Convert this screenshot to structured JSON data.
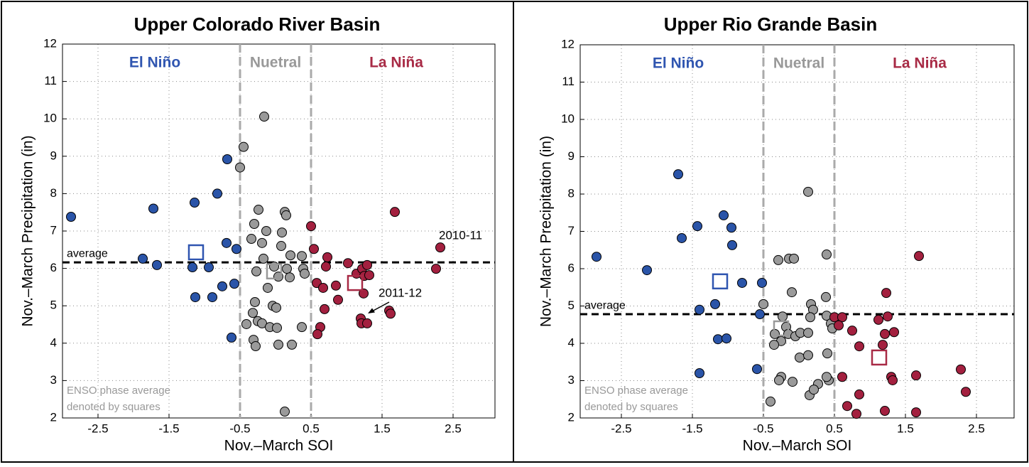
{
  "chart_data": [
    {
      "type": "scatter",
      "title": "Upper Colorado River Basin",
      "x_label": "Nov.–March SOI",
      "y_label": "Nov.–March Precipitation (in)",
      "xlim": [
        -3,
        3.09
      ],
      "ylim": [
        2,
        12
      ],
      "xticks": [
        -2.5,
        -1.5,
        -0.5,
        0.5,
        1.5,
        2.5
      ],
      "yticks": [
        2,
        3,
        4,
        5,
        6,
        7,
        8,
        9,
        10,
        11,
        12
      ],
      "grid": true,
      "phase_bounds": [
        -0.5,
        0.5
      ],
      "average": {
        "label": "average",
        "value": 6.16
      },
      "note": [
        "ENSO phase average",
        "denoted by squares"
      ],
      "annotations": [
        "2010-11",
        "2011-12"
      ],
      "series": [
        {
          "name": "El Niño",
          "color": "#2a54a8",
          "label_color": "#2f55b0",
          "x": [
            -2.88,
            -1.72,
            -1.87,
            -1.67,
            -1.14,
            -1.17,
            -1.13,
            -0.94,
            -0.89,
            -0.75,
            -0.82,
            -0.68,
            -0.69,
            -0.55,
            -0.58,
            -0.62
          ],
          "values": [
            7.38,
            7.6,
            6.26,
            6.09,
            7.76,
            6.03,
            5.23,
            6.03,
            5.23,
            5.52,
            8.0,
            8.92,
            6.68,
            6.52,
            5.59,
            4.15
          ],
          "average": {
            "x": -1.12,
            "value": 6.43
          }
        },
        {
          "name": "Nuetral",
          "color": "#9a9a9a",
          "label_color": "#999999",
          "x": [
            -0.5,
            -0.45,
            -0.16,
            -0.24,
            -0.3,
            -0.34,
            -0.13,
            -0.19,
            -0.17,
            -0.27,
            -0.11,
            -0.02,
            -0.29,
            -0.32,
            -0.25,
            -0.19,
            -0.41,
            -0.08,
            -0.04,
            0.01,
            0.02,
            -0.31,
            -0.28,
            0.04,
            0.23,
            0.13,
            0.13,
            0.15,
            0.09,
            0.08,
            0.21,
            0.16,
            0.2,
            0.37,
            0.39,
            0.41,
            0.37,
            0.04
          ],
          "values": [
            8.7,
            9.25,
            10.06,
            7.57,
            7.19,
            6.79,
            7.0,
            6.68,
            6.26,
            5.92,
            5.48,
            6.05,
            5.1,
            4.81,
            4.59,
            4.53,
            4.51,
            4.43,
            5.0,
            4.95,
            4.41,
            4.09,
            3.92,
            3.96,
            3.96,
            2.17,
            7.51,
            7.42,
            6.96,
            6.6,
            6.35,
            5.99,
            5.76,
            6.33,
            5.99,
            5.86,
            4.43,
            5.78
          ],
          "average": {
            "x": -0.02,
            "value": 5.92
          }
        },
        {
          "name": "La Niña",
          "color": "#a3203f",
          "label_color": "#a82a45",
          "x": [
            0.5,
            0.54,
            0.73,
            0.71,
            0.58,
            0.67,
            0.85,
            0.88,
            0.69,
            0.63,
            0.59,
            1.02,
            1.14,
            1.22,
            1.25,
            1.29,
            1.32,
            1.24,
            1.2,
            1.21,
            1.29,
            1.6,
            1.62,
            1.68,
            2.32,
            2.26
          ],
          "values": [
            7.13,
            6.52,
            6.3,
            6.05,
            5.61,
            5.48,
            5.54,
            5.16,
            4.91,
            4.43,
            4.24,
            6.14,
            5.86,
            5.99,
            5.8,
            6.09,
            5.82,
            5.33,
            4.66,
            4.53,
            4.53,
            4.87,
            4.79,
            7.51,
            6.56,
            5.99
          ],
          "average": {
            "x": 1.12,
            "value": 5.61
          }
        }
      ]
    },
    {
      "type": "scatter",
      "title": "Upper Rio Grande Basin",
      "x_label": "Nov.–March SOI",
      "y_label": "Nov.–March Precipitation (in)",
      "xlim": [
        -3.08,
        3.03
      ],
      "ylim": [
        2,
        12
      ],
      "xticks": [
        -2.5,
        -1.5,
        -0.5,
        0.5,
        1.5,
        2.5
      ],
      "yticks": [
        2,
        3,
        4,
        5,
        6,
        7,
        8,
        9,
        10,
        11,
        12
      ],
      "grid": true,
      "phase_bounds": [
        -0.5,
        0.5
      ],
      "average": {
        "label": "average",
        "value": 4.78
      },
      "note": [
        "ENSO phase average",
        "denoted by squares"
      ],
      "series": [
        {
          "name": "El Niño",
          "color": "#2a54a8",
          "label_color": "#2f55b0",
          "x": [
            -2.85,
            -2.14,
            -1.7,
            -1.65,
            -1.43,
            -1.06,
            -0.95,
            -0.94,
            -0.8,
            -0.52,
            -0.59,
            -1.4,
            -1.18,
            -1.14,
            -1.02,
            -1.4,
            -0.55
          ],
          "values": [
            6.32,
            5.96,
            8.53,
            6.82,
            7.14,
            7.43,
            7.1,
            6.63,
            5.62,
            5.62,
            3.31,
            4.9,
            5.05,
            4.11,
            4.13,
            3.2,
            4.78
          ],
          "average": {
            "x": -1.11,
            "value": 5.66
          }
        },
        {
          "name": "Nuetral",
          "color": "#9a9a9a",
          "label_color": "#999999",
          "x": [
            0.13,
            0.39,
            -0.29,
            -0.14,
            -0.07,
            -0.1,
            -0.5,
            0.17,
            0.2,
            0.16,
            0.38,
            0.39,
            0.45,
            0.47,
            -0.34,
            -0.23,
            -0.18,
            -0.15,
            -0.05,
            0.02,
            0.13,
            -0.25,
            -0.35,
            0.01,
            0.13,
            -0.25,
            -0.28,
            -0.09,
            0.27,
            0.42,
            0.39,
            0.15,
            0.21,
            -0.4,
            0.4
          ],
          "values": [
            8.06,
            6.38,
            6.23,
            6.27,
            6.27,
            5.37,
            5.05,
            5.05,
            4.9,
            4.7,
            5.24,
            4.74,
            4.53,
            4.4,
            4.25,
            4.72,
            4.44,
            4.25,
            4.19,
            4.28,
            4.28,
            4.06,
            3.96,
            3.62,
            3.68,
            3.1,
            3.01,
            2.97,
            2.91,
            3.01,
            3.1,
            2.61,
            2.76,
            2.44,
            3.73
          ],
          "average": {
            "x": -0.25,
            "value": 4.4
          }
        },
        {
          "name": "La Niña",
          "color": "#a3203f",
          "label_color": "#a82a45",
          "x": [
            0.5,
            0.61,
            0.56,
            0.85,
            0.75,
            0.61,
            0.68,
            0.81,
            0.85,
            1.21,
            1.12,
            1.23,
            1.21,
            1.25,
            1.18,
            1.34,
            1.3,
            1.32,
            1.69,
            1.65,
            1.65,
            2.28,
            2.35
          ],
          "values": [
            4.7,
            4.7,
            4.48,
            3.92,
            4.34,
            3.1,
            2.32,
            2.11,
            2.63,
            2.19,
            4.63,
            5.35,
            4.25,
            4.72,
            3.96,
            4.3,
            3.1,
            3.01,
            6.34,
            3.14,
            2.15,
            3.3,
            2.7
          ],
          "average": {
            "x": 1.13,
            "value": 3.62
          }
        }
      ]
    }
  ]
}
